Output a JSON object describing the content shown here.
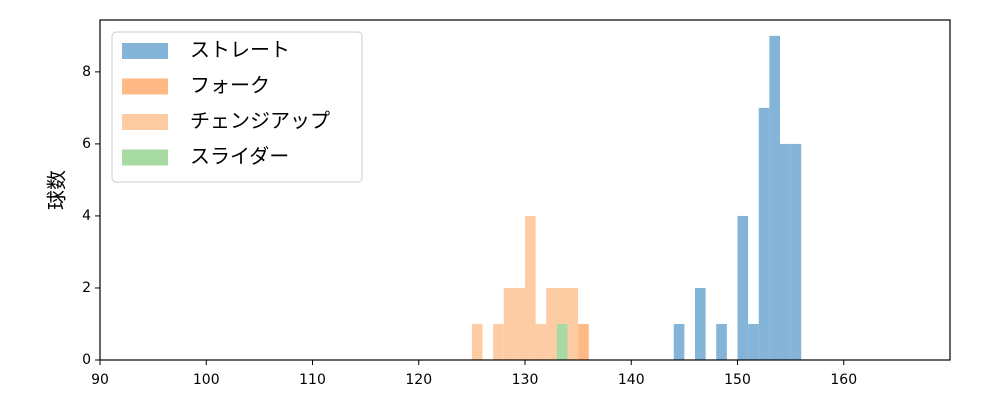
{
  "chart_data": {
    "type": "histogram",
    "ylabel": "球数",
    "xlim": [
      90,
      170
    ],
    "xticks": [
      90,
      100,
      110,
      120,
      130,
      140,
      150,
      160
    ],
    "ylim": [
      0,
      9.44
    ],
    "yticks": [
      0,
      2,
      4,
      6,
      8
    ],
    "legend": "upper left",
    "series": [
      {
        "name": "ストレート",
        "color": "#84b4d8",
        "bins": [
          144,
          145,
          146,
          147,
          148,
          149,
          150,
          151,
          152,
          153,
          154,
          155,
          156
        ],
        "values": [
          1,
          0,
          2,
          0,
          1,
          0,
          4,
          1,
          7,
          9,
          6,
          6
        ]
      },
      {
        "name": "フォーク",
        "color": "#ffb984",
        "bins": [
          135,
          136
        ],
        "values": [
          1
        ]
      },
      {
        "name": "チェンジアップ",
        "color": "#fdcca2",
        "bins": [
          125,
          126,
          127,
          128,
          129,
          130,
          131,
          132,
          133,
          134,
          135
        ],
        "values": [
          1,
          0,
          1,
          2,
          2,
          4,
          1,
          2,
          2,
          2
        ]
      },
      {
        "name": "スライダー",
        "color": "#a8dba3",
        "bins": [
          133,
          134
        ],
        "values": [
          1
        ]
      }
    ]
  }
}
